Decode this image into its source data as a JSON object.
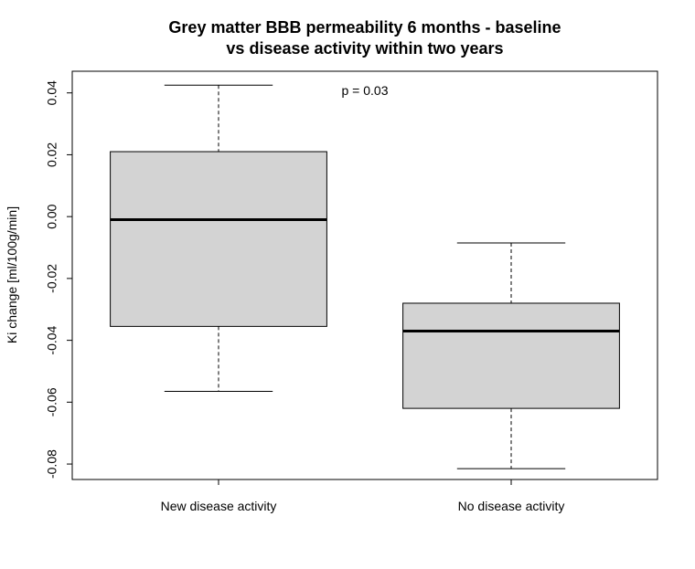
{
  "chart_data": {
    "type": "boxplot",
    "title_lines": [
      "Grey matter BBB permeability 6 months - baseline",
      "vs disease activity within two years"
    ],
    "xlabel": "",
    "ylabel": "Ki change [ml/100g/min]",
    "ylim": [
      -0.085,
      0.047
    ],
    "yticks": [
      0.04,
      0.02,
      0.0,
      -0.02,
      -0.04,
      -0.06,
      -0.08
    ],
    "ytick_labels": [
      "0.04",
      "0.02",
      "0.00",
      "-0.02",
      "-0.04",
      "-0.06",
      "-0.08"
    ],
    "categories": [
      "New disease activity",
      "No disease activity"
    ],
    "boxes": [
      {
        "whisker_low": -0.0565,
        "q1": -0.0355,
        "median": -0.001,
        "q3": 0.021,
        "whisker_high": 0.0425
      },
      {
        "whisker_low": -0.0815,
        "q1": -0.062,
        "median": -0.037,
        "q3": -0.028,
        "whisker_high": -0.0085
      }
    ],
    "annotation": "p = 0.03",
    "box_fill": "#d3d3d3",
    "line_color": "#000000"
  }
}
